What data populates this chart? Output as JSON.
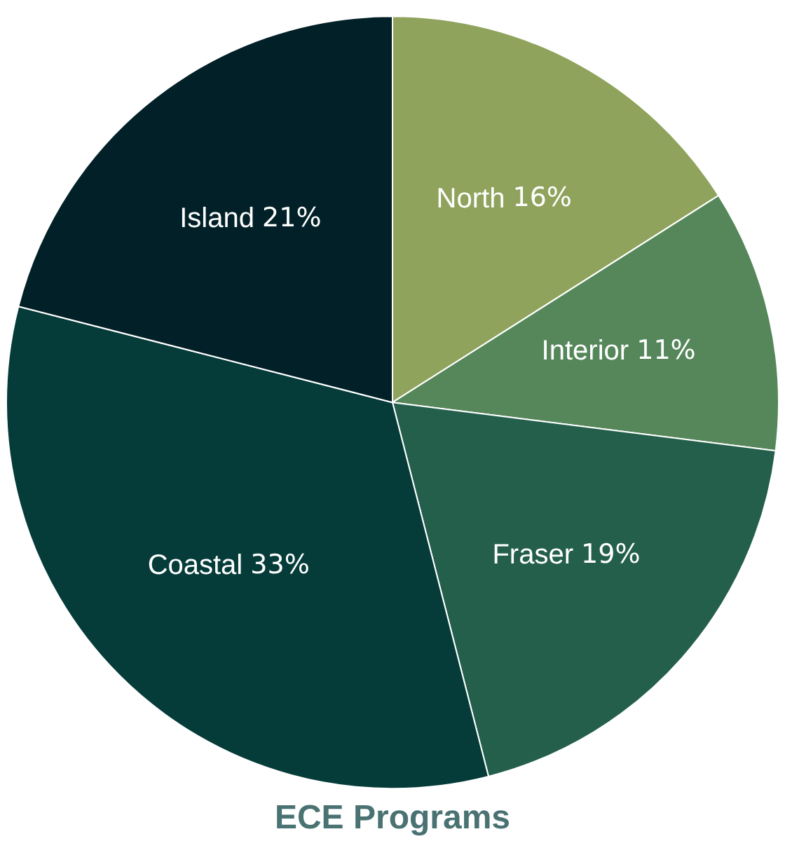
{
  "chart_data": {
    "type": "pie",
    "title": "ECE Programs",
    "categories": [
      "North",
      "Interior",
      "Fraser",
      "Coastal",
      "Island"
    ],
    "values": [
      16,
      11,
      19,
      33,
      21
    ],
    "value_labels": [
      "16%",
      "11%",
      "19%",
      "33%",
      "21%"
    ],
    "colors": [
      "#8fa35c",
      "#55875a",
      "#235f4b",
      "#053c3a",
      "#022027"
    ],
    "legend": false
  }
}
